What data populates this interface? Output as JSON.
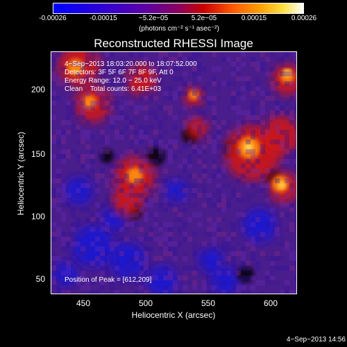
{
  "colorbar": {
    "ticks": [
      "-0.00026",
      "-0.00015",
      "−5.2e−05",
      "5.2e−05",
      "0.00015",
      "0.00026"
    ],
    "units": "(photons cm⁻² s⁻¹ asec⁻²)"
  },
  "title": "Reconstructed RHESSI Image",
  "info": {
    "time_range": "4−Sep−2013 18:03:20.000 to 18:07:52.000",
    "detectors": "Detectors: 3F 5F 6F 7F 8F 9F, Att 0",
    "energy": "Energy Range: 12.0 − 25.0 keV",
    "method": "Clean    Total counts: 6.41E+03"
  },
  "peak": "Position of Peak = [612,209]",
  "axes": {
    "x_label": "Heliocentric X (arcsec)",
    "y_label": "Heliocentric Y (arcsec)",
    "x_ticks": [
      "450",
      "500",
      "550",
      "600"
    ],
    "y_ticks": [
      "200",
      "150",
      "100",
      "50"
    ]
  },
  "timestamp": "4−Sep−2013 14:56"
}
